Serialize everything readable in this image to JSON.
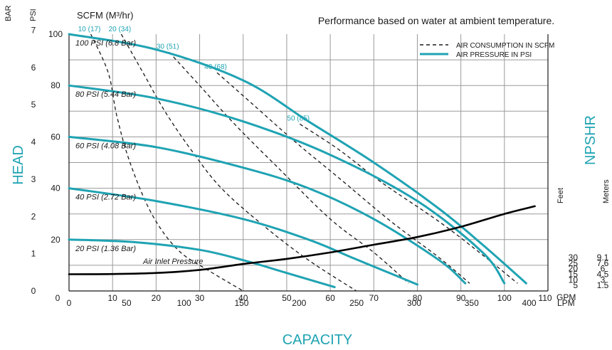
{
  "note": "Performance based on water at ambient temperature.",
  "colors": {
    "accent": "#1fa3b3",
    "grid": "#9a9a9a",
    "inlet": "#000000",
    "scfm": "#1a1a1a"
  },
  "axes": {
    "y_bar_title": "BAR",
    "y_psi_title": "PSI",
    "head_label": "HEAD",
    "capacity_label": "CAPACITY",
    "gpm_unit": "GPM",
    "lpm_unit": "LPM",
    "npshr_label": "NPSHR",
    "feet_title": "Feet",
    "meters_title": "Meters",
    "scfm_title": "SCFM (M³/hr)"
  },
  "legend": {
    "air_consumption": "AIR CONSUMPTION IN SCFM",
    "air_pressure": "AIR PRESSURE IN PSI"
  },
  "chart_data": {
    "type": "line",
    "title": "Performance based on water at ambient temperature.",
    "x_gpm_ticks": [
      "0",
      "10",
      "20",
      "30",
      "40",
      "50",
      "60",
      "70",
      "80",
      "90",
      "100",
      "110"
    ],
    "x_lpm_ticks": [
      "0",
      "50",
      "100",
      "150",
      "200",
      "250",
      "300",
      "350",
      "400"
    ],
    "y_psi_ticks": [
      "20",
      "40",
      "60",
      "80",
      "100"
    ],
    "y_bar_ticks": [
      "0",
      "1",
      "2",
      "3",
      "4",
      "5",
      "6",
      "7"
    ],
    "npshr_feet_ticks": [
      "5",
      "10",
      "15",
      "20",
      "25",
      "30"
    ],
    "npshr_meter_ticks": [
      "1.5",
      "3",
      "4.5",
      "6",
      "7.6",
      "9.1"
    ],
    "xlim_gpm": [
      0,
      110
    ],
    "ylim_psi": [
      0,
      100
    ],
    "grid": true,
    "legend_position": "top-right",
    "pressure_series": [
      {
        "name": "20 PSI (1.36 Bar)",
        "x": [
          0,
          15,
          30,
          40,
          50,
          58,
          61
        ],
        "y": [
          20,
          19,
          16,
          12,
          7,
          3,
          1.5
        ]
      },
      {
        "name": "40 PSI (2.72 Bar)",
        "x": [
          0,
          20,
          40,
          55,
          65,
          75,
          80
        ],
        "y": [
          40,
          35,
          28,
          20,
          13,
          6,
          2.5
        ]
      },
      {
        "name": "60 PSI (4.08 Bar)",
        "x": [
          0,
          20,
          40,
          55,
          70,
          85,
          91
        ],
        "y": [
          60,
          56,
          48,
          40,
          28,
          12,
          3
        ]
      },
      {
        "name": "80 PSI (5.44 Bar)",
        "x": [
          0,
          20,
          40,
          60,
          80,
          95,
          100
        ],
        "y": [
          80,
          75,
          66,
          53,
          35,
          15,
          3
        ]
      },
      {
        "name": "100 PSI (6.8 Bar)",
        "x": [
          0,
          20,
          40,
          55,
          70,
          85,
          95,
          105
        ],
        "y": [
          100,
          94,
          82,
          66,
          50,
          32,
          18,
          3
        ]
      }
    ],
    "scfm_series": [
      {
        "name": "10 (17)",
        "x": [
          5,
          9,
          11,
          14,
          19,
          25,
          32,
          40
        ],
        "y": [
          100,
          85,
          68,
          50,
          30,
          16,
          8,
          0
        ]
      },
      {
        "name": "20 (34)",
        "x": [
          12,
          17,
          22,
          28,
          35,
          45,
          55,
          66
        ],
        "y": [
          100,
          85,
          70,
          55,
          40,
          25,
          12,
          0
        ]
      },
      {
        "name": "30 (51)",
        "x": [
          23,
          30,
          38,
          48,
          60,
          70,
          78
        ],
        "y": [
          93,
          80,
          65,
          48,
          28,
          15,
          3
        ]
      },
      {
        "name": "40 (68)",
        "x": [
          34,
          42,
          52,
          62,
          74,
          85,
          92
        ],
        "y": [
          85,
          73,
          58,
          44,
          27,
          13,
          3
        ]
      },
      {
        "name": "50 (85)",
        "x": [
          53,
          62,
          72,
          85,
          95,
          103
        ],
        "y": [
          65,
          55,
          42,
          27,
          14,
          3
        ]
      }
    ],
    "air_inlet_pressure": {
      "name": "Air Inlet Pressure",
      "x": [
        0,
        10,
        20,
        30,
        40,
        50,
        60,
        70,
        80,
        90,
        100,
        107
      ],
      "y": [
        6.5,
        6.6,
        7.0,
        8.2,
        10.5,
        12.5,
        15,
        18,
        21,
        25,
        30,
        33
      ]
    }
  }
}
